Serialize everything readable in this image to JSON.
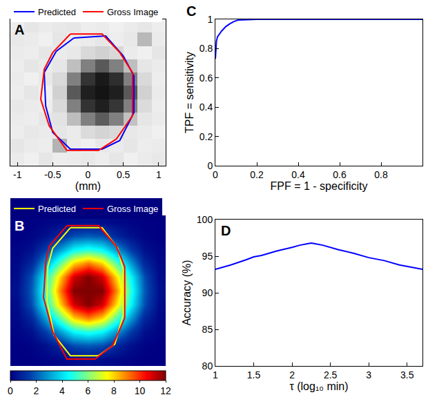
{
  "chart_data": [
    {
      "type": "heatmap",
      "panel": "A",
      "color": "gray",
      "x": [
        -1,
        -0.8,
        -0.6,
        -0.4,
        -0.2,
        0,
        0.2,
        0.4,
        0.6,
        0.8,
        1
      ],
      "y": [
        -1,
        -0.8,
        -0.6,
        -0.4,
        -0.2,
        0,
        0.2,
        0.4,
        0.6,
        0.8,
        1
      ],
      "z": [
        [
          0.92,
          0.94,
          0.9,
          0.93,
          0.92,
          0.91,
          0.93,
          0.9,
          0.94,
          0.92,
          0.91
        ],
        [
          0.9,
          0.92,
          0.93,
          0.7,
          0.92,
          0.94,
          0.91,
          0.92,
          0.9,
          0.93,
          0.92
        ],
        [
          0.93,
          0.91,
          0.92,
          0.9,
          0.92,
          0.86,
          0.83,
          0.85,
          0.91,
          0.92,
          0.94
        ],
        [
          0.92,
          0.93,
          0.9,
          0.89,
          0.74,
          0.5,
          0.36,
          0.5,
          0.76,
          0.9,
          0.92
        ],
        [
          0.91,
          0.92,
          0.93,
          0.85,
          0.5,
          0.2,
          0.12,
          0.21,
          0.5,
          0.86,
          0.93
        ],
        [
          0.93,
          0.9,
          0.94,
          0.82,
          0.35,
          0.12,
          0.08,
          0.12,
          0.35,
          0.82,
          0.92
        ],
        [
          0.92,
          0.94,
          0.91,
          0.85,
          0.5,
          0.2,
          0.1,
          0.18,
          0.5,
          0.85,
          0.93
        ],
        [
          0.93,
          0.9,
          0.92,
          0.9,
          0.75,
          0.5,
          0.35,
          0.5,
          0.75,
          0.9,
          0.92
        ],
        [
          0.92,
          0.93,
          0.9,
          0.92,
          0.91,
          0.85,
          0.82,
          0.85,
          0.92,
          0.94,
          0.9
        ],
        [
          0.91,
          0.92,
          0.94,
          0.9,
          0.93,
          0.92,
          0.9,
          0.93,
          0.91,
          0.72,
          0.92
        ],
        [
          0.93,
          0.9,
          0.92,
          0.91,
          0.9,
          0.93,
          0.92,
          0.94,
          0.92,
          0.9,
          0.93
        ]
      ],
      "zlim": [
        0,
        1
      ],
      "xlim": [
        -1.1,
        1.1
      ],
      "ylim": [
        -1.1,
        1.1
      ],
      "xticks": [
        -1,
        -0.5,
        0,
        0.5,
        1
      ],
      "xlabel": "(mm)",
      "tick_labels": "x",
      "legend": "above",
      "series": [
        {
          "name": "Predicted",
          "color": "#0000ff",
          "x": [
            -0.2,
            0.25,
            0.5,
            0.65,
            0.65,
            0.45,
            0.2,
            -0.25,
            -0.5,
            -0.6,
            -0.62,
            -0.45,
            -0.2
          ],
          "y": [
            0.82,
            0.85,
            0.55,
            0.25,
            -0.3,
            -0.72,
            -0.85,
            -0.85,
            -0.6,
            -0.2,
            0.3,
            0.62,
            0.82
          ]
        },
        {
          "name": "Gross Image",
          "color": "#ff0000",
          "x": [
            -0.25,
            0.2,
            0.45,
            0.63,
            0.63,
            0.4,
            0.15,
            -0.3,
            -0.55,
            -0.67,
            -0.62,
            -0.5,
            -0.25
          ],
          "y": [
            0.88,
            0.88,
            0.6,
            0.3,
            -0.35,
            -0.7,
            -0.87,
            -0.87,
            -0.5,
            -0.1,
            0.35,
            0.6,
            0.88
          ]
        }
      ]
    },
    {
      "type": "heatmap",
      "panel": "B",
      "color": "jet",
      "x": [
        -1,
        -0.8,
        -0.6,
        -0.4,
        -0.2,
        0,
        0.2,
        0.4,
        0.6,
        0.8,
        1
      ],
      "y": [
        -1,
        -0.8,
        -0.6,
        -0.4,
        -0.2,
        0,
        0.2,
        0.4,
        0.6,
        0.8,
        1
      ],
      "z": [
        [
          0,
          0,
          0.1,
          0.2,
          0.3,
          0.4,
          0.3,
          0.2,
          0.1,
          0,
          0
        ],
        [
          0,
          0.1,
          0.4,
          1,
          1.8,
          2,
          1.8,
          1,
          0.4,
          0.1,
          0
        ],
        [
          0.1,
          0.4,
          1.5,
          3,
          4.5,
          5,
          4.5,
          3,
          1.5,
          0.4,
          0.1
        ],
        [
          0.2,
          1,
          3,
          5.5,
          8,
          9,
          8,
          5.5,
          3,
          1,
          0.2
        ],
        [
          0.3,
          1.8,
          4.5,
          8,
          11,
          12,
          11,
          8,
          4.5,
          1.8,
          0.3
        ],
        [
          0.4,
          2,
          5,
          9,
          12,
          12,
          12,
          9,
          5,
          2,
          0.4
        ],
        [
          0.3,
          1.8,
          4.5,
          8,
          11,
          12,
          11,
          8,
          4.5,
          1.8,
          0.3
        ],
        [
          0.2,
          1,
          3,
          5.5,
          8,
          9,
          8,
          5.5,
          3,
          1,
          0.2
        ],
        [
          0.1,
          0.4,
          1.5,
          3,
          4.5,
          5,
          4.5,
          3,
          1.5,
          0.4,
          0.1
        ],
        [
          0,
          0.1,
          0.4,
          1,
          1.8,
          2,
          1.8,
          1,
          0.4,
          0.1,
          0
        ],
        [
          0,
          0,
          0.1,
          0.2,
          0.3,
          0.4,
          0.3,
          0.2,
          0.1,
          0,
          0
        ]
      ],
      "zlim": [
        0,
        12
      ],
      "colorbar_ticks": [
        0,
        2,
        4,
        6,
        8,
        10,
        12
      ],
      "xlim": [
        -1.1,
        1.1
      ],
      "ylim": [
        -1.1,
        1.1
      ],
      "tick_labels": false,
      "legend": "above",
      "series": [
        {
          "name": "Predicted",
          "color": "#ffff00",
          "x": [
            -0.25,
            0.2,
            0.42,
            0.5,
            0.5,
            0.38,
            0.15,
            -0.25,
            -0.48,
            -0.58,
            -0.57,
            -0.5,
            -0.25
          ],
          "y": [
            0.92,
            0.92,
            0.62,
            0.3,
            -0.35,
            -0.78,
            -0.95,
            -0.95,
            -0.65,
            -0.15,
            0.35,
            0.62,
            0.92
          ]
        },
        {
          "name": "Gross Image",
          "color": "#ff0000",
          "x": [
            -0.3,
            0.15,
            0.4,
            0.52,
            0.52,
            0.35,
            0.1,
            -0.3,
            -0.5,
            -0.63,
            -0.6,
            -0.55,
            -0.3
          ],
          "y": [
            0.95,
            0.95,
            0.65,
            0.35,
            -0.4,
            -0.8,
            -1.0,
            -1.0,
            -0.6,
            -0.1,
            0.4,
            0.65,
            0.95
          ]
        }
      ]
    },
    {
      "type": "line",
      "panel": "C",
      "color": "#0000ff",
      "grid": false,
      "x": [
        0,
        0.002,
        0.005,
        0.01,
        0.02,
        0.03,
        0.05,
        0.07,
        0.09,
        0.11,
        0.2,
        0.4,
        0.6,
        0.8,
        1
      ],
      "values": [
        0.73,
        0.8,
        0.85,
        0.88,
        0.9,
        0.92,
        0.95,
        0.97,
        0.985,
        0.995,
        1,
        1,
        1,
        1,
        1
      ],
      "xlim": [
        0,
        1
      ],
      "ylim": [
        0,
        1
      ],
      "xticks": [
        0,
        0.2,
        0.4,
        0.6,
        0.8
      ],
      "yticks": [
        0,
        0.2,
        0.4,
        0.6,
        0.8,
        1
      ],
      "xlabel": "FPF = 1 - specificity",
      "ylabel": "TPF = sensitivity"
    },
    {
      "type": "line",
      "panel": "D",
      "color": "#0000ff",
      "grid": false,
      "x": [
        1,
        1.2,
        1.4,
        1.5,
        1.6,
        1.8,
        2,
        2.1,
        2.2,
        2.25,
        2.3,
        2.4,
        2.6,
        2.8,
        3,
        3.2,
        3.4,
        3.6,
        3.7
      ],
      "values": [
        93.2,
        93.8,
        94.5,
        94.9,
        95.1,
        95.7,
        96.2,
        96.5,
        96.7,
        96.8,
        96.7,
        96.5,
        95.9,
        95.4,
        94.8,
        94.4,
        93.8,
        93.4,
        93.2
      ],
      "xlim": [
        1,
        3.7
      ],
      "ylim": [
        80,
        100
      ],
      "xticks": [
        1,
        1.5,
        2,
        2.5,
        3,
        3.5
      ],
      "yticks": [
        80,
        85,
        90,
        95,
        100
      ],
      "xlabel": "τ (log₁₀ min)",
      "ylabel": "Accuracy (%)"
    }
  ]
}
